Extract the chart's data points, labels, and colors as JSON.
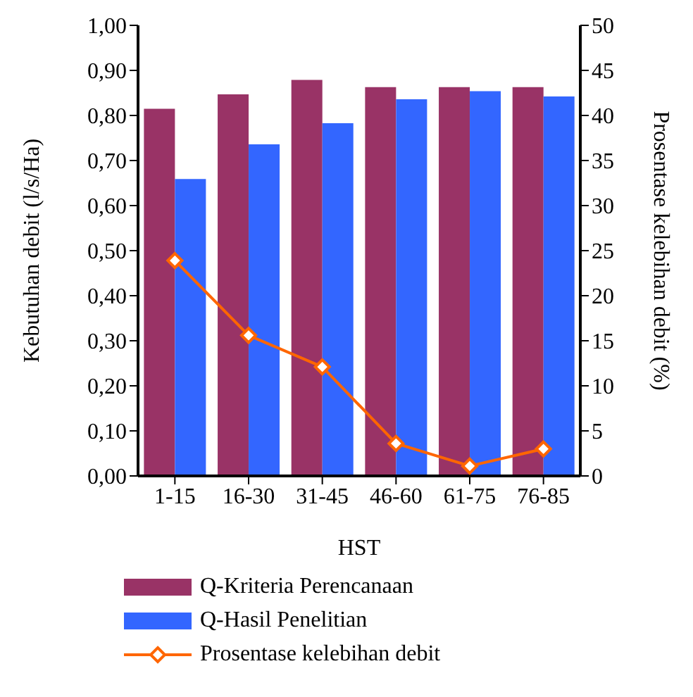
{
  "chart_data": {
    "type": "bar",
    "categories": [
      "1-15",
      "16-30",
      "31-45",
      "46-60",
      "61-75",
      "76-85"
    ],
    "series": [
      {
        "name": "Q-Kriteria Perencanaan",
        "color": "#993366",
        "values": [
          0.815,
          0.847,
          0.879,
          0.863,
          0.863,
          0.863
        ]
      },
      {
        "name": "Q-Hasil Penelitian",
        "color": "#3366ff",
        "values": [
          0.659,
          0.736,
          0.783,
          0.836,
          0.854,
          0.842
        ]
      },
      {
        "name": "Prosentase kelebihan debit",
        "type": "line",
        "axis": "y2",
        "color": "#ff6600",
        "marker": "diamond",
        "values": [
          23.9,
          15.6,
          12.1,
          3.6,
          1.1,
          3.0
        ]
      }
    ],
    "xlabel": "HST",
    "ylabel": "Kebutuhan debit (l/s/Ha)",
    "y2label": "Prosentase kelebihan debit (%)",
    "ylim": [
      0,
      1
    ],
    "yticks": [
      {
        "value": 0,
        "label": "0,00"
      },
      {
        "value": 0.1,
        "label": "0,10"
      },
      {
        "value": 0.2,
        "label": "0,20"
      },
      {
        "value": 0.3,
        "label": "0,30"
      },
      {
        "value": 0.4,
        "label": "0,40"
      },
      {
        "value": 0.5,
        "label": "0,50"
      },
      {
        "value": 0.6,
        "label": "0,60"
      },
      {
        "value": 0.7,
        "label": "0,70"
      },
      {
        "value": 0.8,
        "label": "0,80"
      },
      {
        "value": 0.9,
        "label": "0,90"
      },
      {
        "value": 1,
        "label": "1,00"
      }
    ],
    "y2lim": [
      0,
      50
    ],
    "y2ticks": [
      0,
      5,
      10,
      15,
      20,
      25,
      30,
      35,
      40,
      45,
      50
    ],
    "legend": "bottom"
  }
}
